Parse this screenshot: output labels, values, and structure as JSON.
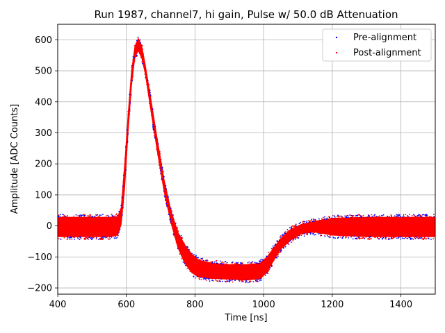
{
  "chart_data": {
    "type": "scatter",
    "title": "Run 1987, channel7, hi gain, Pulse w/ 50.0 dB Attenuation",
    "xlabel": "Time [ns]",
    "ylabel": "Amplitude [ADC Counts]",
    "xlim": [
      400,
      1500
    ],
    "ylim": [
      -220,
      650
    ],
    "xticks": [
      400,
      600,
      800,
      1000,
      1200,
      1400
    ],
    "yticks": [
      -200,
      -100,
      0,
      100,
      200,
      300,
      400,
      500,
      600
    ],
    "grid": true,
    "legend_position": "top-right",
    "series": [
      {
        "name": "Pre-alignment",
        "color": "#0000ff"
      },
      {
        "name": "Post-alignment",
        "color": "#ff0000"
      }
    ],
    "waveform_envelope": {
      "x": [
        400,
        550,
        575,
        585,
        595,
        605,
        615,
        625,
        635,
        645,
        655,
        670,
        690,
        710,
        730,
        750,
        770,
        790,
        810,
        850,
        900,
        950,
        990,
        1010,
        1030,
        1050,
        1080,
        1110,
        1150,
        1200,
        1300,
        1500
      ],
      "upper": [
        28,
        28,
        30,
        60,
        200,
        360,
        500,
        580,
        605,
        580,
        520,
        420,
        280,
        150,
        50,
        -20,
        -60,
        -90,
        -110,
        -120,
        -125,
        -125,
        -120,
        -100,
        -70,
        -40,
        -10,
        5,
        15,
        25,
        28,
        28
      ],
      "lower": [
        -35,
        -35,
        -30,
        5,
        120,
        300,
        450,
        545,
        565,
        540,
        490,
        380,
        240,
        110,
        10,
        -70,
        -120,
        -150,
        -165,
        -170,
        -172,
        -175,
        -170,
        -150,
        -110,
        -75,
        -45,
        -25,
        -20,
        -30,
        -35,
        -35
      ]
    }
  }
}
